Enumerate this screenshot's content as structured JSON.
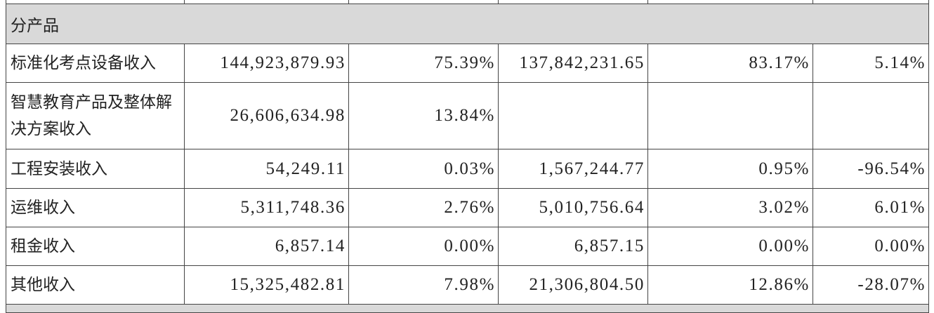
{
  "table": {
    "section": "分产品",
    "rows": [
      {
        "item": "标准化考点设备收入",
        "amount": "144,923,879.93",
        "ratio": "75.39%",
        "prev_amount": "137,842,231.65",
        "prev_ratio": "83.17%",
        "change": "5.14%"
      },
      {
        "item": "智慧教育产品及整体解决方案收入",
        "amount": "26,606,634.98",
        "ratio": "13.84%"
      },
      {
        "item": "工程安装收入",
        "amount": "54,249.11",
        "ratio": "0.03%",
        "prev_amount": "1,567,244.77",
        "prev_ratio": "0.95%",
        "change": "-96.54%"
      },
      {
        "item": "运维收入",
        "amount": "5,311,748.36",
        "ratio": "2.76%",
        "prev_amount": "5,010,756.64",
        "prev_ratio": "3.02%",
        "change": "6.01%"
      },
      {
        "item": "租金收入",
        "amount": "6,857.14",
        "ratio": "0.00%",
        "prev_amount": "6,857.15",
        "prev_ratio": "0.00%",
        "change": "0.00%"
      },
      {
        "item": "其他收入",
        "amount": "15,325,482.81",
        "ratio": "7.98%",
        "prev_amount": "21,306,804.50",
        "prev_ratio": "12.86%",
        "change": "-28.07%"
      }
    ]
  }
}
